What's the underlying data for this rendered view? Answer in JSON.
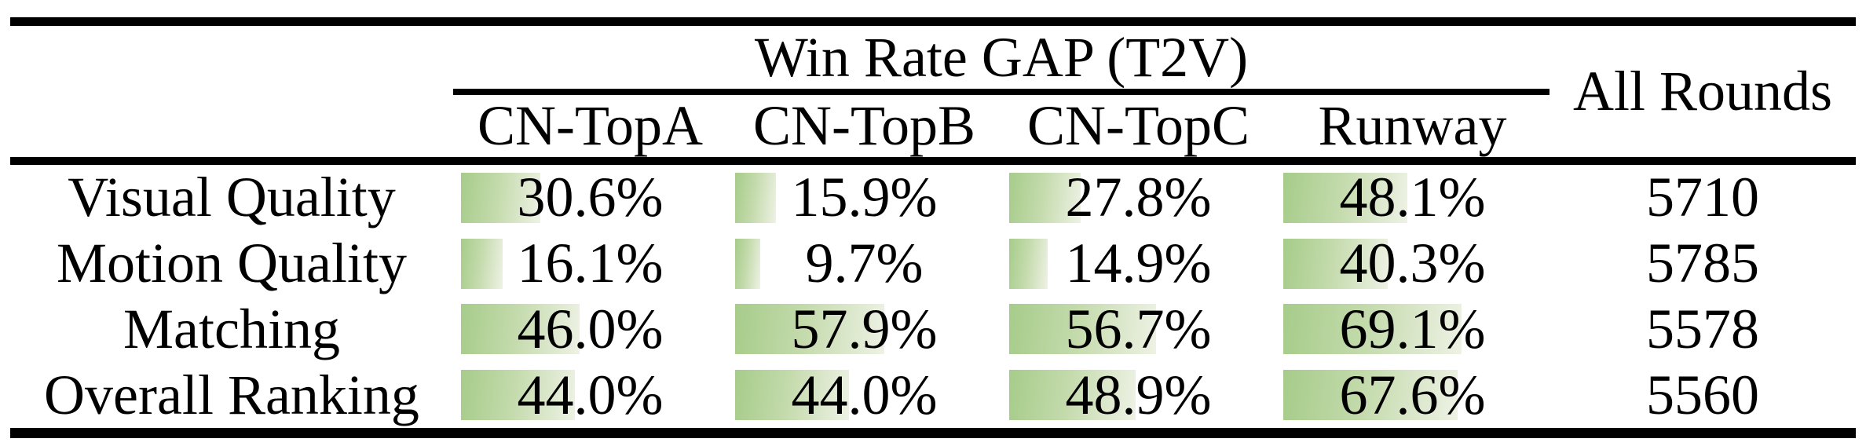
{
  "table": {
    "group_header": "Win Rate GAP (T2V)",
    "all_rounds_header": "All Rounds",
    "columns": [
      "CN-TopA",
      "CN-TopB",
      "CN-TopC",
      "Runway"
    ],
    "rows": [
      {
        "label": "Visual Quality",
        "cells": [
          {
            "pct": 30.6,
            "text": "30.6%"
          },
          {
            "pct": 15.9,
            "text": "15.9%"
          },
          {
            "pct": 27.8,
            "text": "27.8%"
          },
          {
            "pct": 48.1,
            "text": "48.1%"
          }
        ],
        "all_rounds": "5710"
      },
      {
        "label": "Motion Quality",
        "cells": [
          {
            "pct": 16.1,
            "text": "16.1%"
          },
          {
            "pct": 9.7,
            "text": "9.7%"
          },
          {
            "pct": 14.9,
            "text": "14.9%"
          },
          {
            "pct": 40.3,
            "text": "40.3%"
          }
        ],
        "all_rounds": "5785"
      },
      {
        "label": "Matching",
        "cells": [
          {
            "pct": 46.0,
            "text": "46.0%"
          },
          {
            "pct": 57.9,
            "text": "57.9%"
          },
          {
            "pct": 56.7,
            "text": "56.7%"
          },
          {
            "pct": 69.1,
            "text": "69.1%"
          }
        ],
        "all_rounds": "5578"
      },
      {
        "label": "Overall Ranking",
        "cells": [
          {
            "pct": 44.0,
            "text": "44.0%"
          },
          {
            "pct": 44.0,
            "text": "44.0%"
          },
          {
            "pct": 48.9,
            "text": "48.9%"
          },
          {
            "pct": 67.6,
            "text": "67.6%"
          }
        ],
        "all_rounds": "5560"
      }
    ]
  },
  "colors": {
    "bar_green": "#a6cc8a",
    "bar_green_mid": "#c3daab",
    "bar_fade": "#eef2e5",
    "rule_black": "#000000"
  },
  "chart_data": {
    "type": "table",
    "title": "Win Rate GAP (T2V)",
    "columns": [
      "CN-TopA",
      "CN-TopB",
      "CN-TopC",
      "Runway",
      "All Rounds"
    ],
    "row_labels": [
      "Visual Quality",
      "Motion Quality",
      "Matching",
      "Overall Ranking"
    ],
    "series": [
      {
        "name": "Visual Quality",
        "win_rate_gap_pct": [
          30.6,
          15.9,
          27.8,
          48.1
        ],
        "all_rounds": 5710
      },
      {
        "name": "Motion Quality",
        "win_rate_gap_pct": [
          16.1,
          9.7,
          14.9,
          40.3
        ],
        "all_rounds": 5785
      },
      {
        "name": "Matching",
        "win_rate_gap_pct": [
          46.0,
          57.9,
          56.7,
          69.1
        ],
        "all_rounds": 5578
      },
      {
        "name": "Overall Ranking",
        "win_rate_gap_pct": [
          44.0,
          44.0,
          48.9,
          67.6
        ],
        "all_rounds": 5560
      }
    ],
    "bar_scale": [
      0,
      100
    ],
    "legend_position": "none",
    "grid": false,
    "notes": "Green horizontal data bars behind each percentage; bar length proportional to value (0-100% of column width), gradient fades left-green to right-pale."
  }
}
